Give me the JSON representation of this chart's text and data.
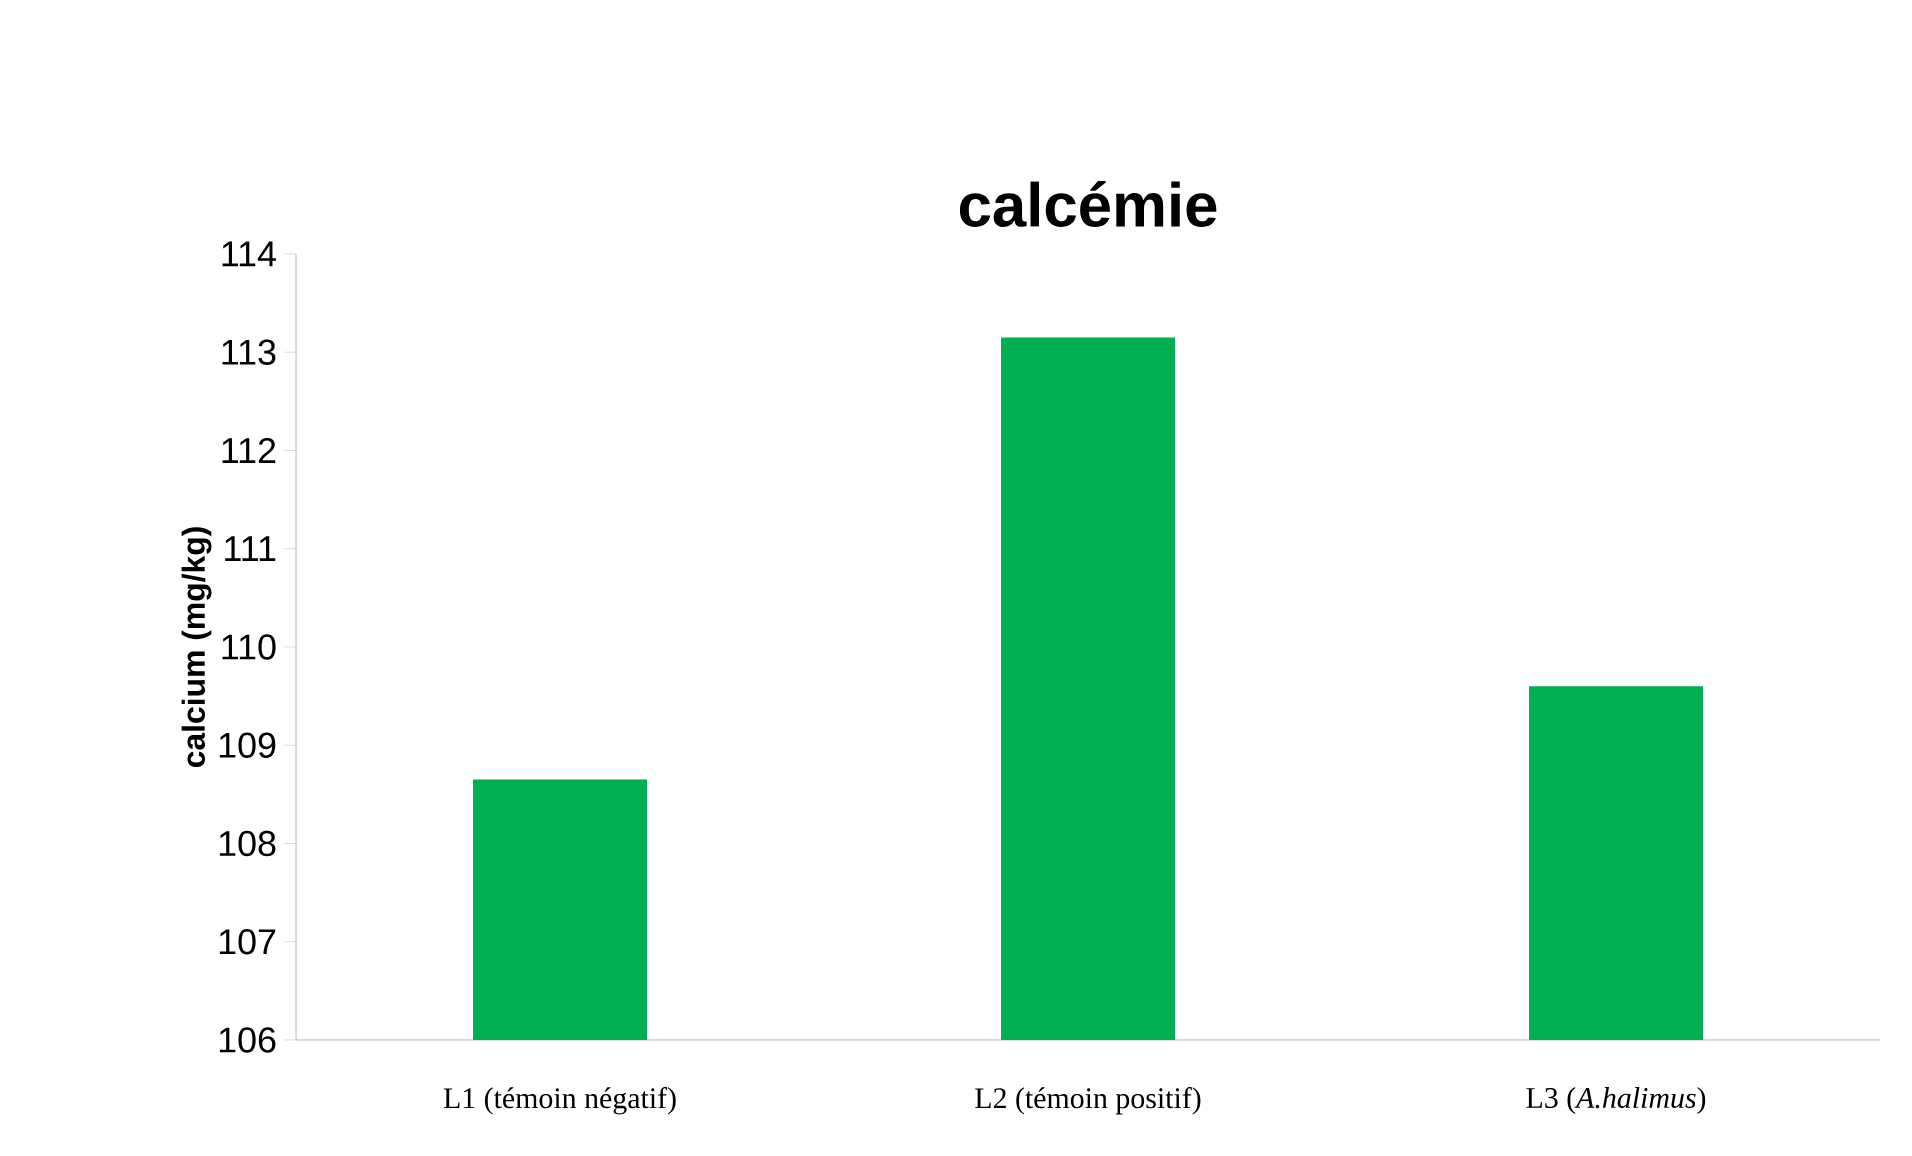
{
  "chart_data": {
    "type": "bar",
    "title": "calcémie",
    "ylabel": "calcium (mg/kg)",
    "categories": [
      "L1 (témoin négatif)",
      "L2 (témoin positif)",
      "L3 (*A.halimus*)"
    ],
    "values": [
      108.65,
      113.15,
      109.6
    ],
    "color": "#00b050",
    "ylim": [
      106,
      114
    ],
    "yticks": [
      106,
      107,
      108,
      109,
      110,
      111,
      112,
      113,
      114
    ],
    "grid": false
  }
}
